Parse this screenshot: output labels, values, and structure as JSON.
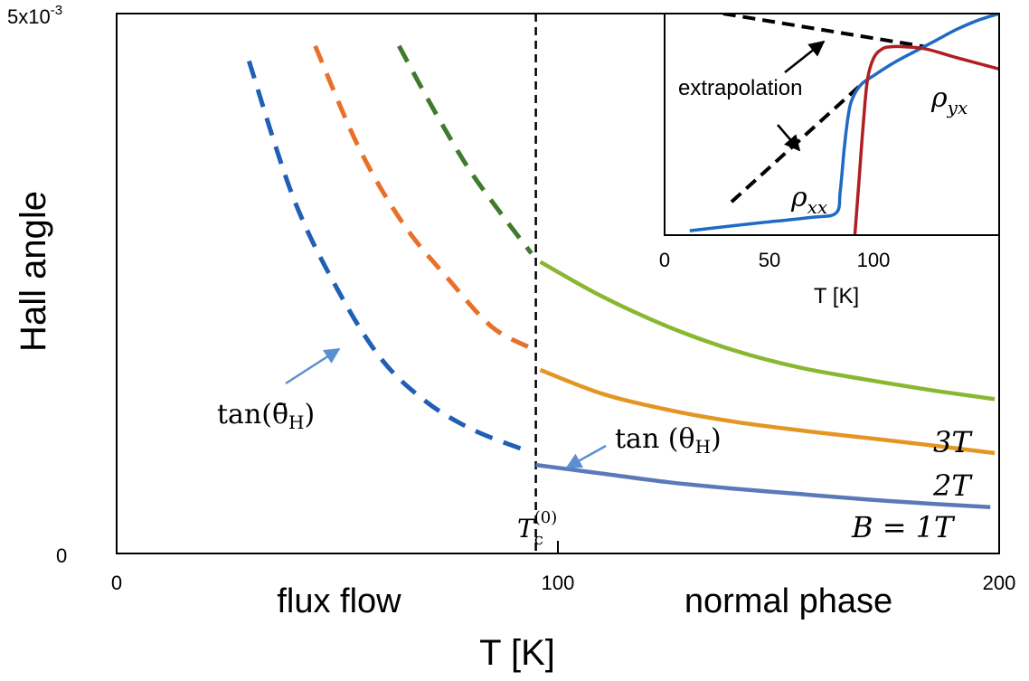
{
  "chart_data": [
    {
      "type": "line",
      "ylabel": "Hall angle",
      "xlabel": "T [K]",
      "xlim": [
        0,
        200
      ],
      "ylim": [
        0,
        0.005
      ],
      "x_ticks": [
        {
          "value": 0,
          "label": "0"
        },
        {
          "value": 100,
          "label": "100"
        },
        {
          "value": 200,
          "label": "200"
        }
      ],
      "y_ticks": [
        {
          "value": 0,
          "label": "0"
        },
        {
          "value": 0.005,
          "label": "5x10-3",
          "base": "5x10",
          "exp": "-3"
        }
      ],
      "regions": [
        {
          "label": "flux flow",
          "at_x": 50
        },
        {
          "label": "normal phase",
          "at_x": 152
        }
      ],
      "tc_line": {
        "x": 95,
        "label": "T",
        "sub": "c",
        "sup": "(0)"
      },
      "series": [
        {
          "name": "B = 1T",
          "color_dashed": "#1f5fb4",
          "color_solid": "#5b79b8",
          "extrapolated": {
            "x": [
              30,
              40,
              50,
              60,
              70,
              80,
              90,
              94
            ],
            "y": [
              0.00456,
              0.0033,
              0.00245,
              0.0018,
              0.00141,
              0.00116,
              0.000995,
              0.000945
            ]
          },
          "measured": {
            "x": [
              95,
              110,
              125,
              140,
              155,
              170,
              185,
              198
            ],
            "y": [
              0.00082,
              0.00074,
              0.00066,
              0.0006,
              0.00055,
              0.0005,
              0.00046,
              0.00043
            ]
          }
        },
        {
          "name": "2T",
          "color_dashed": "#e8702a",
          "color_solid": "#e39622",
          "extrapolated": {
            "x": [
              45,
              55,
              65,
              75,
              85,
              94
            ],
            "y": [
              0.0047,
              0.00375,
              0.00305,
              0.00255,
              0.0021,
              0.0019
            ]
          },
          "measured": {
            "x": [
              96,
              110,
              125,
              140,
              155,
              170,
              185,
              199
            ],
            "y": [
              0.0017,
              0.00148,
              0.00133,
              0.00122,
              0.00114,
              0.00107,
              0.001,
              0.00093
            ]
          },
          "label": "2T"
        },
        {
          "name": "3T",
          "color_dashed": "#3f7b2a",
          "color_solid": "#8ab731",
          "extrapolated": {
            "x": [
              64,
              72,
              80,
              88,
              94
            ],
            "y": [
              0.0047,
              0.0041,
              0.00355,
              0.0031,
              0.00278
            ]
          },
          "measured": {
            "x": [
              96,
              110,
              125,
              140,
              155,
              170,
              185,
              199
            ],
            "y": [
              0.0027,
              0.00238,
              0.0021,
              0.00188,
              0.00172,
              0.00161,
              0.00151,
              0.00143
            ]
          },
          "label": "3T"
        }
      ],
      "annotations": [
        {
          "text": "tan(θ̄H)",
          "display": "tan(θ̄",
          "sub": "H",
          "close": ")",
          "arrow_to": [
            52,
            0.00245
          ]
        },
        {
          "text": "tan (θH)",
          "display": "tan (θ",
          "sub": "H",
          "close": ")",
          "arrow_to": [
            102,
            0.00078
          ]
        }
      ]
    },
    {
      "type": "line",
      "xlabel": "T [K]",
      "xlim": [
        0,
        160
      ],
      "ylim": [
        0,
        10
      ],
      "x_ticks": [
        {
          "value": 0,
          "label": "0"
        },
        {
          "value": 50,
          "label": "50"
        },
        {
          "value": 100,
          "label": "100"
        }
      ],
      "annotation": "extrapolation",
      "series": [
        {
          "name": "ρxx",
          "base": "ρ",
          "sub": "xx",
          "color": "#1f6ac4",
          "x": [
            12,
            40,
            70,
            82,
            84,
            86,
            88,
            90,
            94,
            100,
            110,
            120,
            130,
            140,
            150,
            160
          ],
          "y": [
            0.2,
            0.5,
            0.8,
            1.0,
            2.0,
            4.0,
            5.5,
            6.2,
            6.8,
            7.2,
            7.8,
            8.3,
            8.8,
            9.3,
            9.7,
            10.0
          ]
        },
        {
          "name": "ρyx",
          "base": "ρ",
          "sub": "yx",
          "color": "#b01e24",
          "x": [
            91,
            93,
            95,
            97,
            100,
            104,
            108,
            115,
            125,
            140,
            160
          ],
          "y": [
            0.0,
            2.5,
            5.0,
            7.0,
            8.0,
            8.4,
            8.5,
            8.5,
            8.4,
            8.0,
            7.5
          ]
        }
      ],
      "extrapolation_lines": [
        {
          "x": [
            28,
            125
          ],
          "y": [
            10.0,
            8.5
          ]
        },
        {
          "x": [
            32,
            94
          ],
          "y": [
            1.5,
            6.8
          ]
        }
      ]
    }
  ]
}
